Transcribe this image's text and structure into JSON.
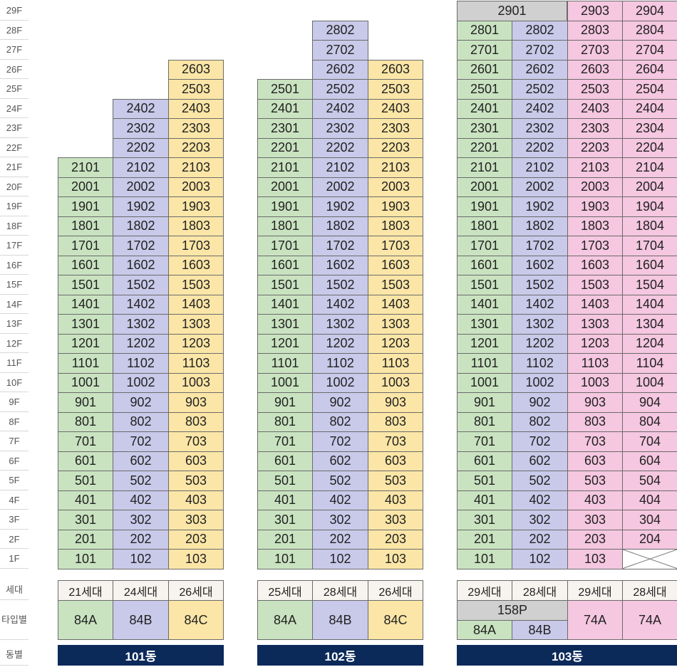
{
  "floors": [
    "29F",
    "28F",
    "27F",
    "26F",
    "25F",
    "24F",
    "23F",
    "22F",
    "21F",
    "20F",
    "19F",
    "18F",
    "17F",
    "16F",
    "15F",
    "14F",
    "13F",
    "12F",
    "11F",
    "10F",
    "9F",
    "8F",
    "7F",
    "6F",
    "5F",
    "4F",
    "3F",
    "2F",
    "1F"
  ],
  "row_labels": {
    "households": "세대",
    "type": "타입별",
    "building": "동별"
  },
  "colors": {
    "84A": "#c9e3c0",
    "84B": "#c9c9ea",
    "84C": "#fbe6a7",
    "74A": "#f5c7e0",
    "158P": "#d0d0d0",
    "header": "#f7f3ee",
    "bar": "#0b2a5a"
  },
  "buildings": [
    {
      "name": "101동",
      "columns": [
        {
          "type": "84A",
          "households": "21세대",
          "units": [
            "2101",
            "2001",
            "1901",
            "1801",
            "1701",
            "1601",
            "1501",
            "1401",
            "1301",
            "1201",
            "1101",
            "1001",
            "901",
            "801",
            "701",
            "601",
            "501",
            "401",
            "301",
            "201",
            "101"
          ]
        },
        {
          "type": "84B",
          "households": "24세대",
          "units": [
            "2402",
            "2302",
            "2202",
            "2102",
            "2002",
            "1902",
            "1802",
            "1702",
            "1602",
            "1502",
            "1402",
            "1302",
            "1202",
            "1102",
            "1002",
            "902",
            "802",
            "702",
            "602",
            "502",
            "402",
            "302",
            "202",
            "102"
          ]
        },
        {
          "type": "84C",
          "households": "26세대",
          "units": [
            "2603",
            "2503",
            "2403",
            "2303",
            "2203",
            "2103",
            "2003",
            "1903",
            "1803",
            "1703",
            "1603",
            "1503",
            "1403",
            "1303",
            "1203",
            "1103",
            "1003",
            "903",
            "803",
            "703",
            "603",
            "503",
            "403",
            "303",
            "203",
            "103"
          ]
        }
      ]
    },
    {
      "name": "102동",
      "columns": [
        {
          "type": "84A",
          "households": "25세대",
          "units": [
            "2501",
            "2401",
            "2301",
            "2201",
            "2101",
            "2001",
            "1901",
            "1801",
            "1701",
            "1601",
            "1501",
            "1401",
            "1301",
            "1201",
            "1101",
            "1001",
            "901",
            "801",
            "701",
            "601",
            "501",
            "401",
            "301",
            "201",
            "101"
          ]
        },
        {
          "type": "84B",
          "households": "28세대",
          "units": [
            "2802",
            "2702",
            "2602",
            "2502",
            "2402",
            "2302",
            "2202",
            "2102",
            "2002",
            "1902",
            "1802",
            "1702",
            "1602",
            "1502",
            "1402",
            "1302",
            "1202",
            "1102",
            "1002",
            "902",
            "802",
            "702",
            "602",
            "502",
            "402",
            "302",
            "202",
            "102"
          ]
        },
        {
          "type": "84C",
          "households": "26세대",
          "units": [
            "2603",
            "2503",
            "2403",
            "2303",
            "2203",
            "2103",
            "2003",
            "1903",
            "1803",
            "1703",
            "1603",
            "1503",
            "1403",
            "1303",
            "1203",
            "1103",
            "1003",
            "903",
            "803",
            "703",
            "603",
            "503",
            "403",
            "303",
            "203",
            "103"
          ]
        }
      ]
    },
    {
      "name": "103동",
      "penthouse": {
        "type": "158P",
        "unit": "2901"
      },
      "columns": [
        {
          "type": "84A",
          "households": "29세대",
          "units": [
            "2901",
            "2801",
            "2701",
            "2601",
            "2501",
            "2401",
            "2301",
            "2201",
            "2101",
            "2001",
            "1901",
            "1801",
            "1701",
            "1601",
            "1501",
            "1401",
            "1301",
            "1201",
            "1101",
            "1001",
            "901",
            "801",
            "701",
            "601",
            "501",
            "401",
            "301",
            "201",
            "101"
          ]
        },
        {
          "type": "84B",
          "households": "28세대",
          "units": [
            "2802",
            "2702",
            "2602",
            "2502",
            "2402",
            "2302",
            "2202",
            "2102",
            "2002",
            "1902",
            "1802",
            "1702",
            "1602",
            "1502",
            "1402",
            "1302",
            "1202",
            "1102",
            "1002",
            "902",
            "802",
            "702",
            "602",
            "502",
            "402",
            "302",
            "202",
            "102"
          ]
        },
        {
          "type": "74A",
          "households": "29세대",
          "units": [
            "2903",
            "2803",
            "2703",
            "2603",
            "2503",
            "2403",
            "2303",
            "2203",
            "2103",
            "2003",
            "1903",
            "1803",
            "1703",
            "1603",
            "1503",
            "1403",
            "1303",
            "1203",
            "1103",
            "1003",
            "903",
            "803",
            "703",
            "603",
            "503",
            "403",
            "303",
            "203",
            "103"
          ]
        },
        {
          "type": "74A",
          "households": "28세대",
          "units": [
            "2904",
            "2804",
            "2704",
            "2604",
            "2504",
            "2404",
            "2304",
            "2204",
            "2104",
            "2004",
            "1904",
            "1804",
            "1704",
            "1604",
            "1504",
            "1404",
            "1304",
            "1204",
            "1104",
            "1004",
            "904",
            "804",
            "704",
            "604",
            "504",
            "404",
            "304",
            "204",
            null
          ]
        }
      ]
    }
  ]
}
